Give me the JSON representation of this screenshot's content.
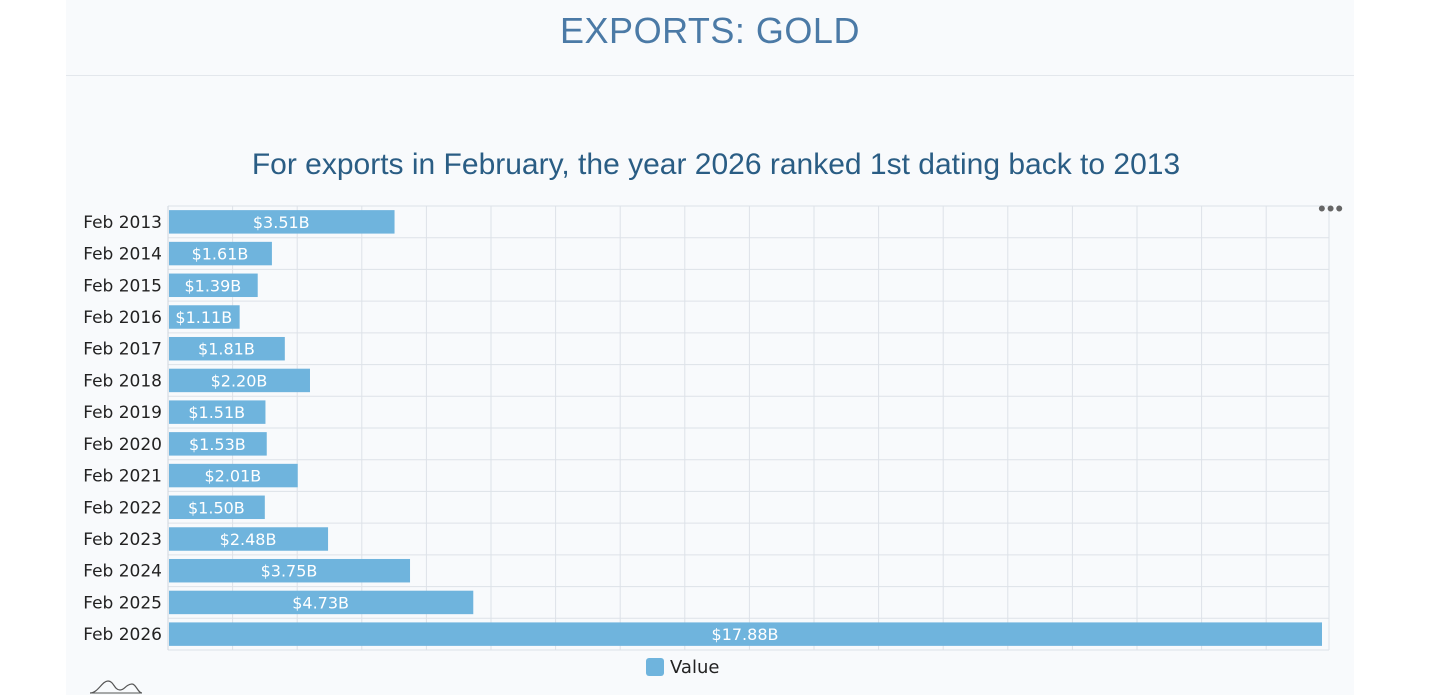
{
  "header": {
    "title": "EXPORTS: GOLD"
  },
  "chart_data": {
    "type": "bar",
    "orientation": "horizontal",
    "title": "For exports in February, the year 2026 ranked 1st dating back to 2013",
    "categories": [
      "Feb 2013",
      "Feb 2014",
      "Feb 2015",
      "Feb 2016",
      "Feb 2017",
      "Feb 2018",
      "Feb 2019",
      "Feb 2020",
      "Feb 2021",
      "Feb 2022",
      "Feb 2023",
      "Feb 2024",
      "Feb 2025",
      "Feb 2026"
    ],
    "series": [
      {
        "name": "Value",
        "values": [
          3.51,
          1.61,
          1.39,
          1.11,
          1.81,
          2.2,
          1.51,
          1.53,
          2.01,
          1.5,
          2.48,
          3.75,
          4.73,
          17.88
        ],
        "labels": [
          "$3.51B",
          "$1.61B",
          "$1.39B",
          "$1.11B",
          "$1.81B",
          "$2.20B",
          "$1.51B",
          "$1.53B",
          "$2.01B",
          "$1.50B",
          "$2.48B",
          "$3.75B",
          "$4.73B",
          "$17.88B"
        ]
      }
    ],
    "xlim": [
      0,
      18
    ],
    "grid": true,
    "legend_position": "bottom-center",
    "bar_color": "#6fb4dd"
  },
  "legend": {
    "label": "Value"
  },
  "toolbar": {
    "menu_label": "•••"
  }
}
